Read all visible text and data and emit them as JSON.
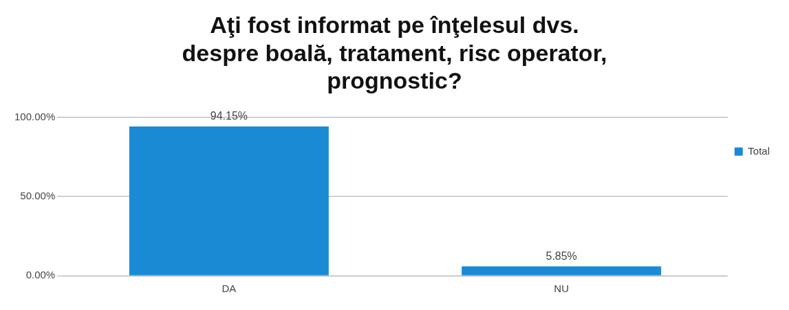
{
  "chart_data": {
    "type": "bar",
    "title": "Aţi fost informat pe înţelesul dvs. despre boală, tratament, risc operator, prognostic?",
    "categories": [
      "DA",
      "NU"
    ],
    "series": [
      {
        "name": "Total",
        "color": "#1a8ad4",
        "values": [
          94.15,
          5.85
        ],
        "value_labels": [
          "94.15%",
          "5.85%"
        ]
      }
    ],
    "ylim": [
      0,
      100
    ],
    "yticks": [
      {
        "value": 0,
        "label": "0.00%"
      },
      {
        "value": 50,
        "label": "50.00%"
      },
      {
        "value": 100,
        "label": "100.00%"
      }
    ],
    "grid": "y",
    "legend": "right"
  }
}
